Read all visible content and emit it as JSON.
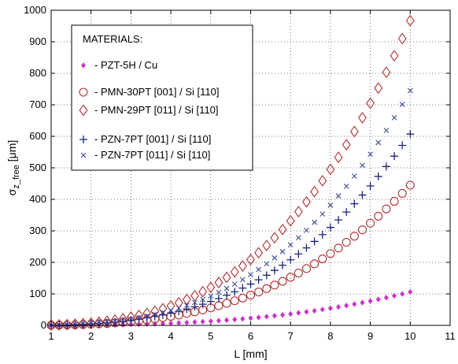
{
  "chart_data": {
    "type": "scatter",
    "title": "",
    "xlabel": "L [mm]",
    "ylabel": "σz_free [μm]",
    "ylabel_main": "σ",
    "ylabel_sub": "z_free",
    "ylabel_unit": " [μm]",
    "xlim": [
      1,
      11
    ],
    "ylim": [
      0,
      1000
    ],
    "xticks": [
      "1",
      "2",
      "3",
      "4",
      "5",
      "6",
      "7",
      "8",
      "9",
      "10",
      "11"
    ],
    "yticks": [
      "0",
      "100",
      "200",
      "300",
      "400",
      "500",
      "600",
      "700",
      "800",
      "900",
      "1000"
    ],
    "grid": true,
    "legend": {
      "title": "MATERIALS:",
      "position": "top-left"
    },
    "series": [
      {
        "name": "- PZT-5H / Cu",
        "marker": "diamond-filled",
        "color": "#cc33cc",
        "x_start": 1,
        "x_end": 10,
        "x_step": 0.2,
        "y_at_x10": 106
      },
      {
        "name": "- PMN-30PT [001] / Si [110]",
        "marker": "circle",
        "color": "#b03030",
        "x_start": 1,
        "x_end": 10,
        "x_step": 0.2,
        "y_at_x10": 445
      },
      {
        "name": "- PMN-29PT [011] / Si [110]",
        "marker": "diamond",
        "color": "#b03030",
        "x_start": 1,
        "x_end": 10,
        "x_step": 0.2,
        "y_at_x10": 967
      },
      {
        "name": "- PZN-7PT [001] / Si [110]",
        "marker": "plus",
        "color": "#1a237e",
        "x_start": 1,
        "x_end": 10,
        "x_step": 0.2,
        "y_at_x10": 607
      },
      {
        "name": "- PZN-7PT [011] / Si [110]",
        "marker": "x",
        "color": "#3a4a9e",
        "x_start": 1,
        "x_end": 10,
        "x_step": 0.2,
        "y_at_x10": 745
      }
    ],
    "model": "y = y_at_x10 * (x/10)^3"
  }
}
